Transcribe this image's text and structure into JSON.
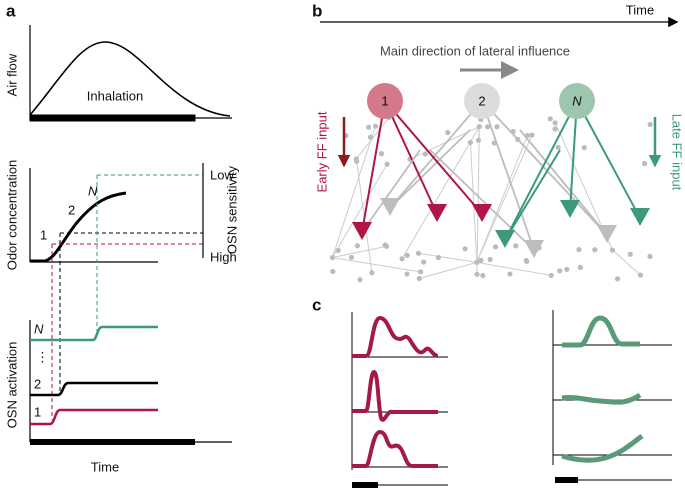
{
  "panel_a": {
    "label": "a",
    "air_flow": {
      "axis_label": "Air flow",
      "annotation": "Inhalation"
    },
    "odor": {
      "axis_label": "Odor concentration",
      "curve_labels": [
        "1",
        "2",
        "N"
      ],
      "sensitivity_low": "Low",
      "sensitivity_high": "High",
      "sensitivity_label": "OSN sensitivity"
    },
    "activation": {
      "axis_label": "OSN activation",
      "trace_labels": [
        "N",
        "⋮",
        "2",
        "1"
      ],
      "x_label": "Time"
    }
  },
  "panel_b": {
    "label": "b",
    "time_label": "Time",
    "lateral_label": "Main direction of lateral influence",
    "neurons": [
      "1",
      "2",
      "N"
    ],
    "early_label": "Early FF input",
    "late_label": "Late FF input"
  },
  "panel_c": {
    "label": "c"
  }
}
